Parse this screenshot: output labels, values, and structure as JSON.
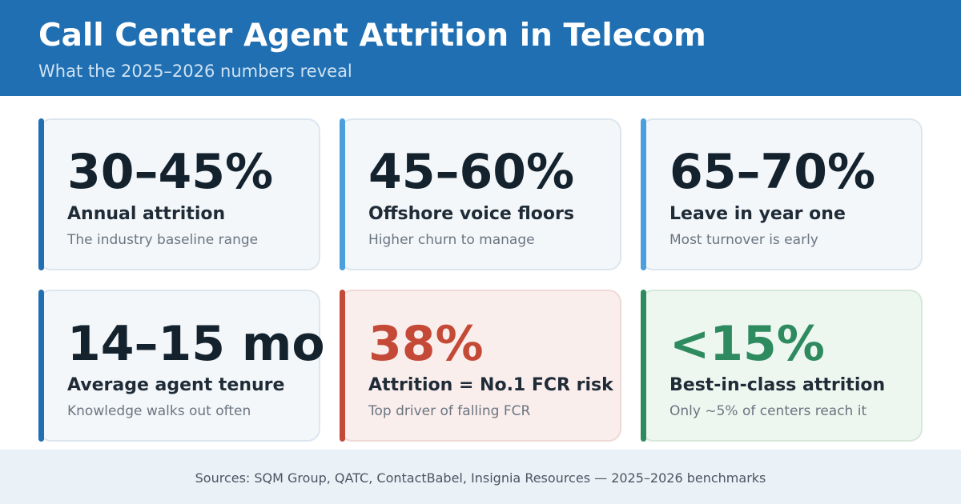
{
  "header": {
    "title": "Call Center Agent Attrition in Telecom",
    "subtitle": "What the 2025–2026 numbers reveal"
  },
  "colors": {
    "header_bg": "#1f6fb2",
    "accent_dark_blue": "#1f6fb2",
    "accent_light_blue": "#4a9fdc",
    "accent_red": "#c44a37",
    "accent_green": "#2e8a5f"
  },
  "cards": [
    {
      "value": "30–45%",
      "label": "Annual attrition",
      "description": "The industry baseline range"
    },
    {
      "value": "45–60%",
      "label": "Offshore voice floors",
      "description": "Higher churn to manage"
    },
    {
      "value": "65–70%",
      "label": "Leave in year one",
      "description": "Most turnover is early"
    },
    {
      "value": "14–15 mo",
      "label": "Average agent tenure",
      "description": "Knowledge walks out often"
    },
    {
      "value": "38%",
      "label": "Attrition = No.1 FCR risk",
      "description": "Top driver of falling FCR"
    },
    {
      "value": "<15%",
      "label": "Best-in-class attrition",
      "description": "Only ~5% of centers reach it"
    }
  ],
  "footer": {
    "sources": "Sources: SQM Group, QATC, ContactBabel, Insignia Resources — 2025–2026 benchmarks"
  }
}
